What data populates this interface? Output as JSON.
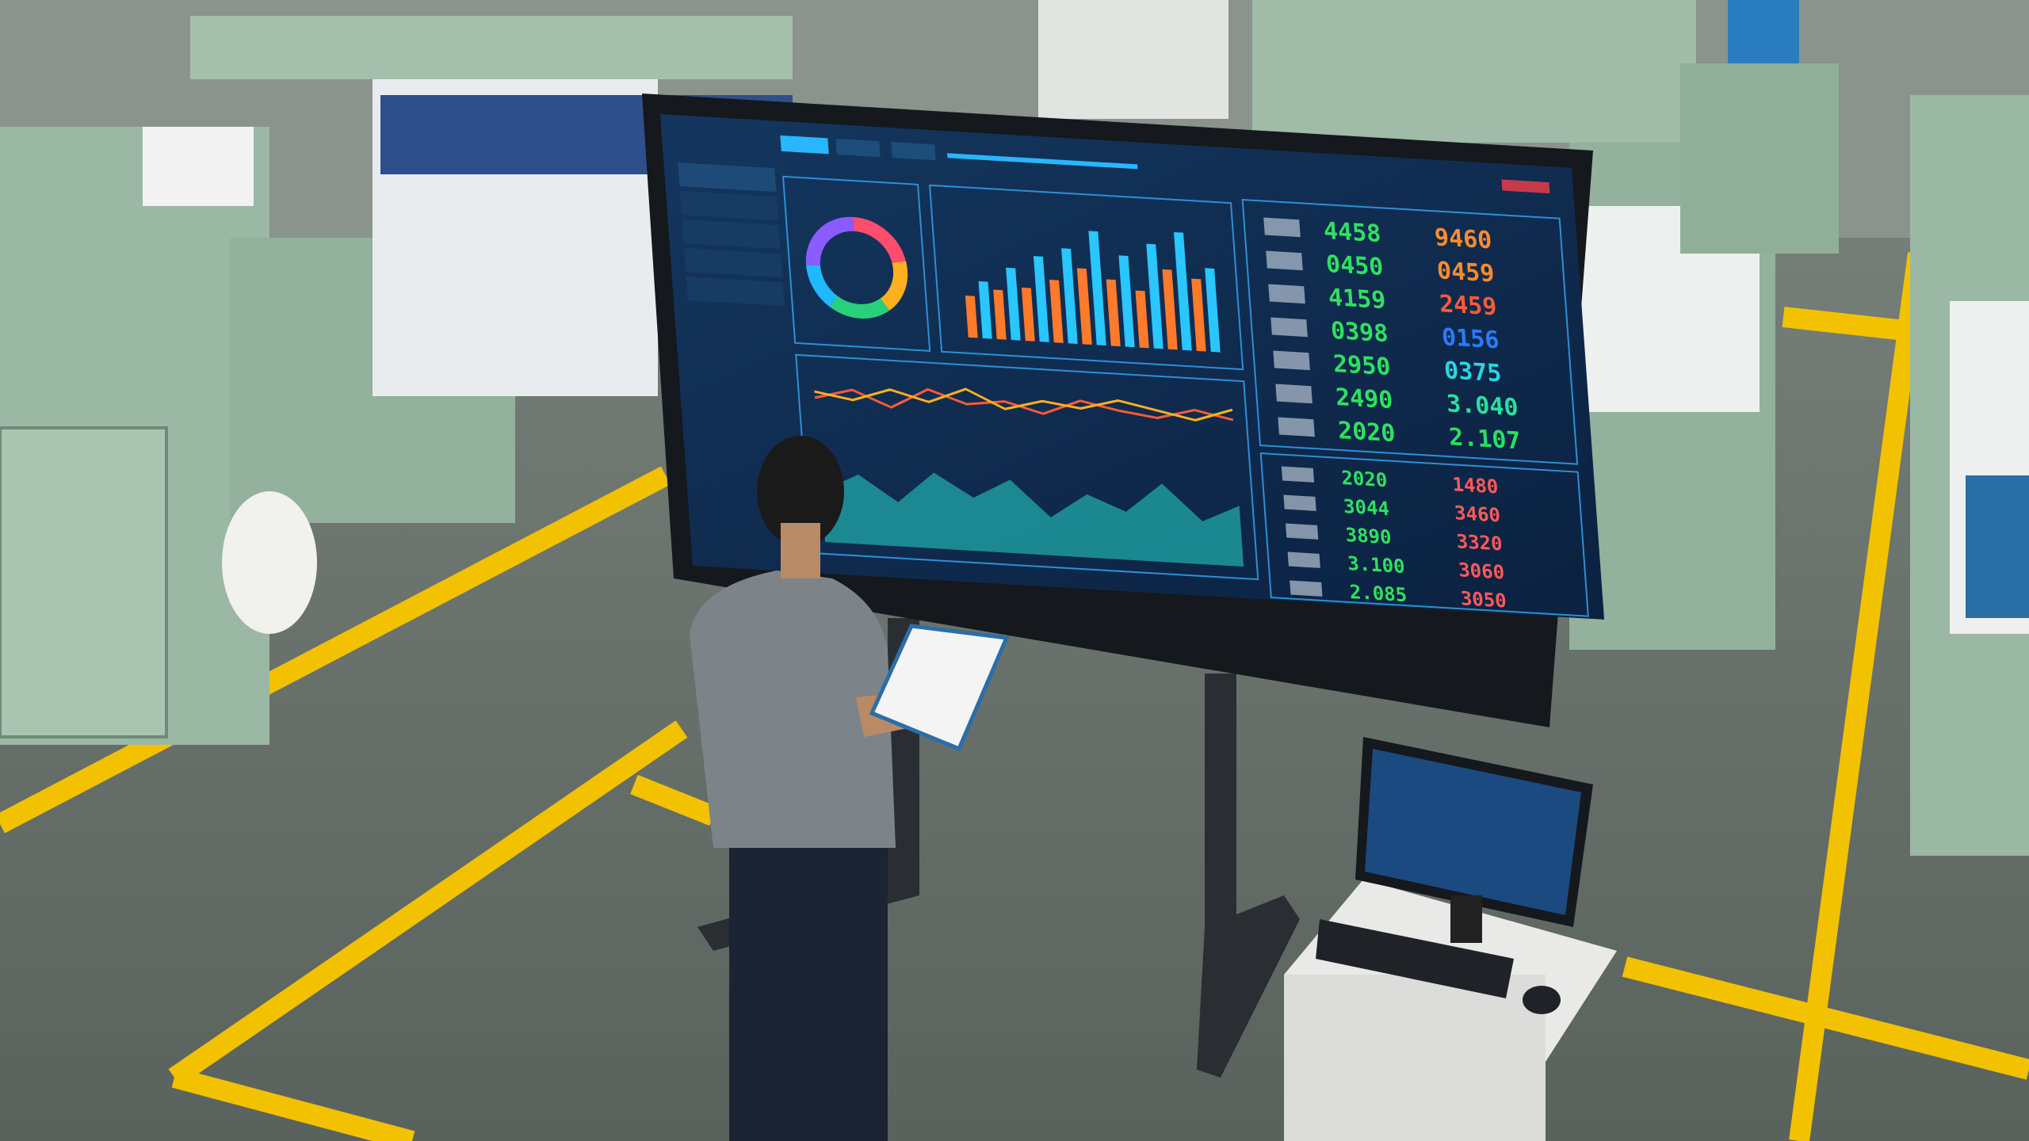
{
  "scene": {
    "floor_color": "#6b736e",
    "lane_color": "#f2c200",
    "machine_color": "#9bb8a4",
    "screen_bg": "#0f2a4a",
    "panel_border": "#2e8fd6"
  },
  "dashboard": {
    "donut": {
      "segments": [
        22,
        18,
        20,
        15,
        25
      ],
      "colors": [
        "#ff4d6d",
        "#ffb020",
        "#29d07a",
        "#20b8ff",
        "#8a5cff"
      ]
    },
    "bars": {
      "values": [
        22,
        30,
        26,
        38,
        28,
        45,
        33,
        50,
        40,
        60,
        35,
        48,
        30,
        55,
        42,
        62,
        38,
        44
      ],
      "colors": [
        "#ff7a2a",
        "#29c6ff"
      ]
    },
    "area": {
      "series_a": [
        40,
        55,
        35,
        60,
        42,
        58,
        30,
        50,
        38,
        62,
        34,
        48
      ],
      "series_b": [
        70,
        78,
        66,
        82,
        72,
        76,
        68,
        80,
        74,
        70,
        78,
        72
      ],
      "series_c": [
        75,
        70,
        80,
        72,
        84,
        70,
        78,
        74,
        82,
        76,
        70,
        80
      ]
    },
    "table_top": {
      "col_a": [
        "4458",
        "0450",
        "4159",
        "0398",
        "2950",
        "2490",
        "2020"
      ],
      "col_b": [
        "9460",
        "0459",
        "2459",
        "0156",
        "0375",
        "3.040",
        "2.107"
      ],
      "col_b_colors": [
        "#ff8c2a",
        "#ff8c2a",
        "#ff5a3a",
        "#2a7bff",
        "#29d6e0",
        "#29e0a0",
        "#29e060"
      ]
    },
    "table_bottom": {
      "col_a": [
        "2020",
        "3044",
        "3890",
        "3.100",
        "2.085"
      ],
      "col_b": [
        "1480",
        "3460",
        "3320",
        "3060",
        "3050"
      ]
    }
  }
}
